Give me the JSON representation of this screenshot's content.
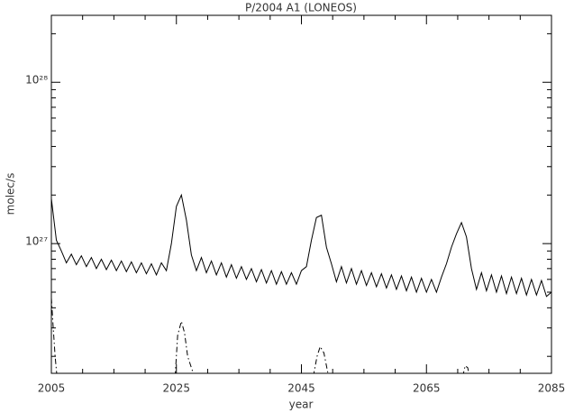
{
  "chart_data": {
    "type": "line",
    "title": "P/2004 A1 (LONEOS)",
    "xlabel": "year",
    "ylabel": "molec/s",
    "yscale": "log",
    "xlim": [
      2005,
      2085
    ],
    "xticks": [
      2005,
      2025,
      2045,
      2065,
      2085
    ],
    "xminorticks": [
      2010,
      2015,
      2020,
      2030,
      2035,
      2040,
      2050,
      2055,
      2060,
      2070,
      2075,
      2080
    ],
    "ylim": [
      1.57e+26,
      2.6e+28
    ],
    "yticks": [
      {
        "value": 1e+27,
        "label": "10²⁷"
      },
      {
        "value": 1e+28,
        "label": "10²⁸"
      }
    ],
    "yminorticks": [
      2e+26,
      3e+26,
      4e+26,
      5e+26,
      6e+26,
      7e+26,
      8e+26,
      9e+26,
      2e+27,
      3e+27,
      4e+27,
      5e+27,
      6e+27,
      7e+27,
      8e+27,
      9e+27,
      2e+28
    ],
    "series": [
      {
        "color": "#000000",
        "dash": "solid",
        "x": [
          2005.0,
          2005.8,
          2006.6,
          2007.4,
          2008.2,
          2009.0,
          2009.8,
          2010.6,
          2011.4,
          2012.2,
          2013.0,
          2013.8,
          2014.6,
          2015.4,
          2016.2,
          2017.0,
          2017.8,
          2018.6,
          2019.4,
          2020.2,
          2021.0,
          2021.8,
          2022.6,
          2023.4,
          2024.2,
          2025.0,
          2025.8,
          2026.6,
          2027.4,
          2028.2,
          2029.0,
          2029.8,
          2030.6,
          2031.4,
          2032.2,
          2033.0,
          2033.8,
          2034.6,
          2035.4,
          2036.2,
          2037.0,
          2037.8,
          2038.6,
          2039.4,
          2040.2,
          2041.0,
          2041.8,
          2042.6,
          2043.4,
          2044.2,
          2045.0,
          2045.8,
          2046.6,
          2047.4,
          2048.2,
          2049.0,
          2049.8,
          2050.6,
          2051.4,
          2052.2,
          2053.0,
          2053.8,
          2054.6,
          2055.4,
          2056.2,
          2057.0,
          2057.8,
          2058.6,
          2059.4,
          2060.2,
          2061.0,
          2061.8,
          2062.6,
          2063.4,
          2064.2,
          2065.0,
          2065.8,
          2066.6,
          2067.4,
          2068.2,
          2069.0,
          2069.8,
          2070.6,
          2071.4,
          2072.2,
          2073.0,
          2073.8,
          2074.6,
          2075.4,
          2076.2,
          2077.0,
          2077.8,
          2078.6,
          2079.4,
          2080.2,
          2081.0,
          2081.8,
          2082.6,
          2083.4,
          2084.2,
          2085.0
        ],
        "values": [
          1.9e+27,
          1.05e+27,
          9e+26,
          7.6e+26,
          8.6e+26,
          7.4e+26,
          8.4e+26,
          7.2e+26,
          8.2e+26,
          7e+26,
          8e+26,
          6.9e+26,
          7.9e+26,
          6.8e+26,
          7.8e+26,
          6.7e+26,
          7.7e+26,
          6.6e+26,
          7.6e+26,
          6.5e+26,
          7.5e+26,
          6.4e+26,
          7.6e+26,
          6.8e+26,
          1e+27,
          1.7e+27,
          2e+27,
          1.4e+27,
          8.5e+26,
          6.8e+26,
          8.2e+26,
          6.6e+26,
          7.8e+26,
          6.4e+26,
          7.6e+26,
          6.2e+26,
          7.4e+26,
          6.1e+26,
          7.2e+26,
          6e+26,
          7e+26,
          5.8e+26,
          6.9e+26,
          5.7e+26,
          6.8e+26,
          5.6e+26,
          6.7e+26,
          5.6e+26,
          6.6e+26,
          5.6e+26,
          6.8e+26,
          7.2e+26,
          1.05e+27,
          1.45e+27,
          1.5e+27,
          9.5e+26,
          7.5e+26,
          5.8e+26,
          7.2e+26,
          5.7e+26,
          7e+26,
          5.6e+26,
          6.8e+26,
          5.5e+26,
          6.6e+26,
          5.4e+26,
          6.5e+26,
          5.3e+26,
          6.4e+26,
          5.2e+26,
          6.3e+26,
          5.1e+26,
          6.2e+26,
          5e+26,
          6.1e+26,
          5e+26,
          6e+26,
          5e+26,
          6.2e+26,
          7.5e+26,
          9.5e+26,
          1.15e+27,
          1.35e+27,
          1.1e+27,
          7e+26,
          5.2e+26,
          6.6e+26,
          5.1e+26,
          6.4e+26,
          5e+26,
          6.3e+26,
          4.9e+26,
          6.2e+26,
          4.9e+26,
          6.1e+26,
          4.8e+26,
          6e+26,
          4.8e+26,
          5.9e+26,
          4.7e+26,
          5e+26
        ]
      },
      {
        "color": "#000000",
        "dash": "dashdot",
        "x": [
          2005.0,
          2005.3,
          2005.6,
          2005.9,
          2015.0,
          2024.8,
          2025.2,
          2025.8,
          2026.3,
          2026.8,
          2027.4,
          2027.9,
          2037.0,
          2046.9,
          2047.5,
          2048.0,
          2048.6,
          2049.2,
          2049.5,
          2060.0,
          2070.8,
          2071.2,
          2071.6,
          2071.9
        ],
        "values": [
          4.6e+26,
          3e+26,
          2e+26,
          1.5e+26,
          null,
          1.5e+26,
          2.7e+26,
          3.3e+26,
          2.8e+26,
          2e+26,
          1.7e+26,
          1.5e+26,
          null,
          1.5e+26,
          2e+26,
          2.3e+26,
          2.1e+26,
          1.6e+26,
          1.5e+26,
          null,
          1.5e+26,
          1.75e+26,
          1.7e+26,
          1.5e+26
        ]
      }
    ]
  }
}
